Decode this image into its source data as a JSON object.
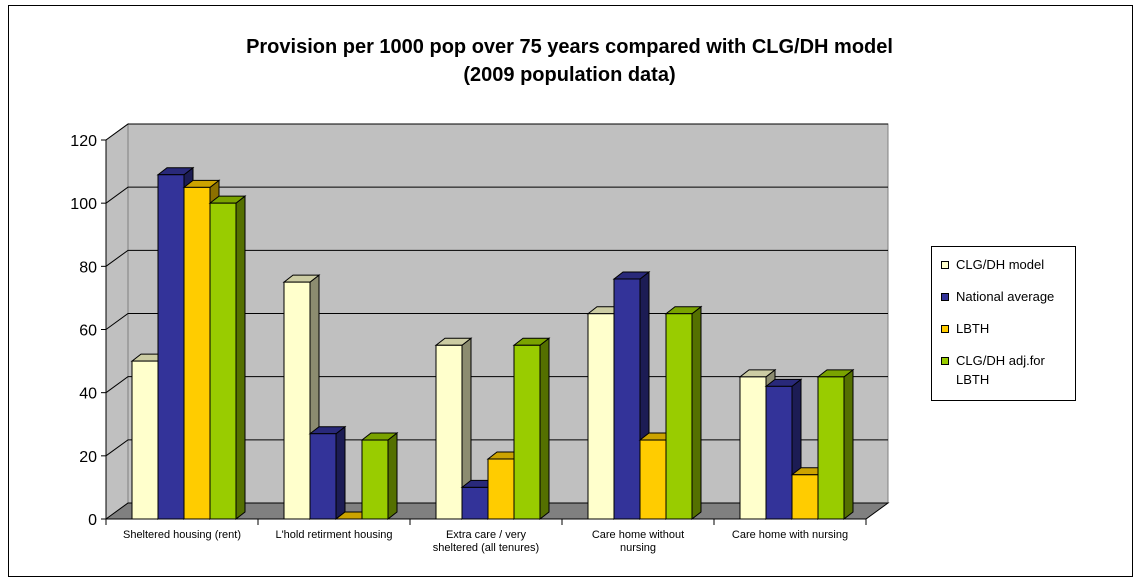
{
  "chart_data": {
    "type": "bar",
    "title": [
      "Provision per 1000 pop over 75 years compared with CLG/DH model",
      "(2009 population data)"
    ],
    "categories": [
      [
        "Sheltered housing (rent)"
      ],
      [
        "L'hold retirment housing"
      ],
      [
        "Extra care / very",
        "sheltered (all tenures)"
      ],
      [
        "Care home without",
        "nursing"
      ],
      [
        "Care home with nursing"
      ]
    ],
    "series": [
      {
        "name": "CLG/DH model",
        "values": [
          50,
          75,
          55,
          65,
          45
        ],
        "color": "#ffffcc"
      },
      {
        "name": "National average",
        "values": [
          109,
          27,
          10,
          76,
          42
        ],
        "color": "#333399"
      },
      {
        "name": "LBTH",
        "values": [
          105,
          0,
          19,
          25,
          14
        ],
        "color": "#ffcc00"
      },
      {
        "name": [
          "CLG/DH adj.for",
          "LBTH"
        ],
        "values": [
          100,
          25,
          55,
          65,
          45
        ],
        "color": "#99cc00"
      }
    ],
    "ylim": [
      0,
      120
    ],
    "yticks": [
      0,
      20,
      40,
      60,
      80,
      100,
      120
    ],
    "grid": true,
    "legend_position": "right",
    "wall_color": "#c0c0c0",
    "floor_color": "#808080"
  }
}
